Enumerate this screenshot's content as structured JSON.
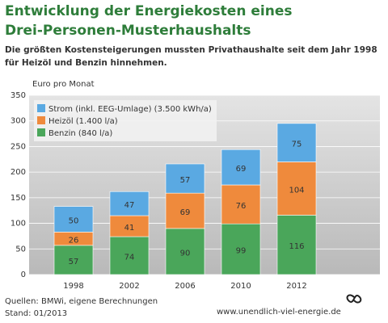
{
  "chart_data": {
    "type": "stacked-bar",
    "title": "Entwicklung der Energiekosten eines Drei-Personen-Musterhaushalts",
    "subtitle": "Die größten Kostensteigerungen mussten Privathaushalte seit dem Jahr 1998 für Heizöl und Benzin hinnehmen.",
    "y_label": "Euro pro Monat",
    "categories": [
      "1998",
      "2002",
      "2006",
      "2010",
      "2012"
    ],
    "series": [
      {
        "name": "Benzin (840 l/a)",
        "color": "#4aa65a",
        "values": [
          57,
          74,
          90,
          99,
          116
        ]
      },
      {
        "name": "Heizöl (1.400 l/a)",
        "color": "#ef8a3c",
        "values": [
          26,
          41,
          69,
          76,
          104
        ]
      },
      {
        "name": "Strom (inkl. EEG-Umlage) (3.500 kWh/a)",
        "color": "#5aa9e2",
        "values": [
          50,
          47,
          57,
          69,
          75
        ]
      }
    ],
    "ylim": [
      0,
      350
    ],
    "yticks": [
      0,
      50,
      100,
      150,
      200,
      250,
      300,
      350
    ],
    "grid": true,
    "legend": "upper-left",
    "source": "Quellen: BMWi, eigene Berechnungen",
    "date": "Stand: 01/2013",
    "website": "www.unendlich-viel-energie.de"
  }
}
